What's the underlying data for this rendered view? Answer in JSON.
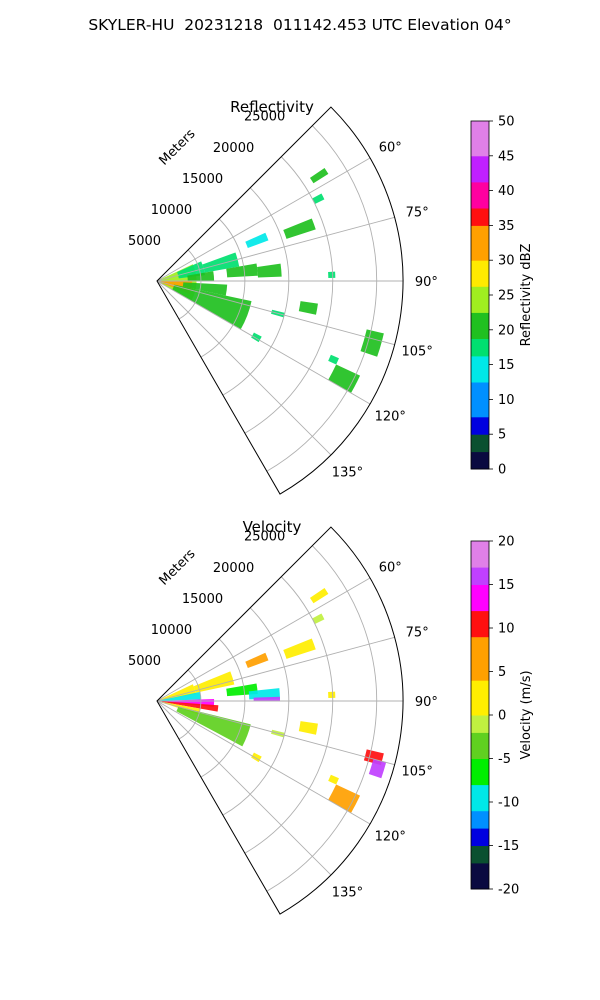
{
  "title": "SKYLER-HU  20231218  011142.453 UTC Elevation 04°",
  "chart_data": [
    {
      "type": "ppi-sector",
      "title": "Reflectivity",
      "radial_axis_label": "Meters",
      "radial_ticks": [
        5000,
        10000,
        15000,
        20000,
        25000
      ],
      "radial_tick_labels": [
        "5000",
        "10000",
        "15000",
        "20000",
        "25000"
      ],
      "range_max": 28000,
      "azimuth_range": [
        45,
        150
      ],
      "azimuth_ticks": [
        60,
        75,
        90,
        105,
        120,
        135
      ],
      "azimuth_tick_labels": [
        "60°",
        "75°",
        "90°",
        "105°",
        "120°",
        "135°"
      ],
      "grid": true,
      "colorbar": {
        "label": "Reflectivity dBZ",
        "min": 0,
        "max": 50,
        "ticks": [
          0,
          5,
          10,
          15,
          20,
          25,
          30,
          35,
          40,
          45,
          50
        ],
        "tick_labels": [
          "0",
          "5",
          "10",
          "15",
          "20",
          "25",
          "30",
          "35",
          "40",
          "45",
          "50"
        ],
        "color_stops": [
          {
            "v": 0,
            "c": "#0a0a40"
          },
          {
            "v": 3,
            "c": "#0a5030"
          },
          {
            "v": 5,
            "c": "#0000e0"
          },
          {
            "v": 8,
            "c": "#0090ff"
          },
          {
            "v": 12,
            "c": "#00e8e8"
          },
          {
            "v": 16,
            "c": "#00e070"
          },
          {
            "v": 19,
            "c": "#20c020"
          },
          {
            "v": 22,
            "c": "#a0ee20"
          },
          {
            "v": 26,
            "c": "#ffea00"
          },
          {
            "v": 30,
            "c": "#ffa000"
          },
          {
            "v": 35,
            "c": "#ff1010"
          },
          {
            "v": 38,
            "c": "#ff00a0"
          },
          {
            "v": 41,
            "c": "#c020ff"
          },
          {
            "v": 45,
            "c": "#e080e8"
          },
          {
            "v": 50,
            "c": "#f8e8f8"
          }
        ]
      },
      "echoes": [
        {
          "az": [
            65,
            120
          ],
          "r": [
            0,
            4500
          ],
          "value": 24
        },
        {
          "az": [
            90,
            112
          ],
          "r": [
            300,
            4000
          ],
          "value": 30
        },
        {
          "az": [
            66,
            83
          ],
          "r": [
            2500,
            5500
          ],
          "value": 18
        },
        {
          "az": [
            70,
            80
          ],
          "r": [
            5500,
            9500
          ],
          "value": 16
        },
        {
          "az": [
            80,
            90
          ],
          "r": [
            3500,
            6500
          ],
          "value": 20
        },
        {
          "az": [
            93,
            102
          ],
          "r": [
            3000,
            8000
          ],
          "value": 20
        },
        {
          "az": [
            102,
            120
          ],
          "r": [
            2000,
            11000
          ],
          "value": 21
        },
        {
          "az": [
            80,
            87
          ],
          "r": [
            8000,
            11500
          ],
          "value": 19
        },
        {
          "az": [
            82,
            88
          ],
          "r": [
            11500,
            14200
          ],
          "value": 20
        },
        {
          "az": [
            66,
            70
          ],
          "r": [
            11000,
            13500
          ],
          "value": 13
        },
        {
          "az": [
            68,
            72
          ],
          "r": [
            15500,
            19000
          ],
          "value": 20
        },
        {
          "az": [
            56,
            58
          ],
          "r": [
            21000,
            23000
          ],
          "value": 19
        },
        {
          "az": [
            62,
            64
          ],
          "r": [
            20000,
            21200
          ],
          "value": 18
        },
        {
          "az": [
            87,
            89
          ],
          "r": [
            19500,
            20300
          ],
          "value": 18
        },
        {
          "az": [
            98,
            102
          ],
          "r": [
            16500,
            18500
          ],
          "value": 19
        },
        {
          "az": [
            104,
            106
          ],
          "r": [
            13500,
            15000
          ],
          "value": 18
        },
        {
          "az": [
            103,
            109
          ],
          "r": [
            24500,
            26500
          ],
          "value": 20
        },
        {
          "az": [
            113,
            115
          ],
          "r": [
            21500,
            22500
          ],
          "value": 18
        },
        {
          "az": [
            115,
            120
          ],
          "r": [
            22500,
            25500
          ],
          "value": 19
        },
        {
          "az": [
            118,
            121
          ],
          "r": [
            12500,
            13500
          ],
          "value": 18
        }
      ]
    },
    {
      "type": "ppi-sector",
      "title": "Velocity",
      "radial_axis_label": "Meters",
      "radial_ticks": [
        5000,
        10000,
        15000,
        20000,
        25000
      ],
      "radial_tick_labels": [
        "5000",
        "10000",
        "15000",
        "20000",
        "25000"
      ],
      "range_max": 28000,
      "azimuth_range": [
        45,
        150
      ],
      "azimuth_ticks": [
        60,
        75,
        90,
        105,
        120,
        135
      ],
      "azimuth_tick_labels": [
        "60°",
        "75°",
        "90°",
        "105°",
        "120°",
        "135°"
      ],
      "grid": true,
      "colorbar": {
        "label": "Velocity (m/s)",
        "min": -20,
        "max": 20,
        "ticks": [
          -20,
          -15,
          -10,
          -5,
          0,
          5,
          10,
          15,
          20
        ],
        "tick_labels": [
          "-20",
          "-15",
          "-10",
          "-5",
          "0",
          "5",
          "10",
          "15",
          "20"
        ],
        "color_stops": [
          {
            "v": -20,
            "c": "#0a0a40"
          },
          {
            "v": -17,
            "c": "#0a5030"
          },
          {
            "v": -15,
            "c": "#0000e0"
          },
          {
            "v": -13,
            "c": "#0090ff"
          },
          {
            "v": -11,
            "c": "#00e8e8"
          },
          {
            "v": -8,
            "c": "#00ee00"
          },
          {
            "v": -5,
            "c": "#60d020"
          },
          {
            "v": -2,
            "c": "#c0f040"
          },
          {
            "v": 0,
            "c": "#ffee00"
          },
          {
            "v": 4,
            "c": "#ffa000"
          },
          {
            "v": 9,
            "c": "#ff1010"
          },
          {
            "v": 12,
            "c": "#ff00ff"
          },
          {
            "v": 15,
            "c": "#c040ff"
          },
          {
            "v": 17,
            "c": "#e080e8"
          },
          {
            "v": 20,
            "c": "#f8e8f8"
          }
        ]
      },
      "echoes": [
        {
          "az": [
            65,
            80
          ],
          "r": [
            0,
            4500
          ],
          "value": 1
        },
        {
          "az": [
            68,
            78
          ],
          "r": [
            4500,
            9000
          ],
          "value": 1
        },
        {
          "az": [
            78,
            88
          ],
          "r": [
            0,
            5000
          ],
          "value": -11
        },
        {
          "az": [
            88,
            96
          ],
          "r": [
            0,
            6500
          ],
          "value": 13
        },
        {
          "az": [
            94,
            100
          ],
          "r": [
            500,
            7000
          ],
          "value": 9
        },
        {
          "az": [
            100,
            108
          ],
          "r": [
            0,
            5000
          ],
          "value": 1
        },
        {
          "az": [
            104,
            118
          ],
          "r": [
            2500,
            11000
          ],
          "value": -5
        },
        {
          "az": [
            80,
            86
          ],
          "r": [
            8000,
            11500
          ],
          "value": -7
        },
        {
          "az": [
            84,
            89
          ],
          "r": [
            10500,
            14000
          ],
          "value": -11
        },
        {
          "az": [
            88,
            90
          ],
          "r": [
            11000,
            14000
          ],
          "value": 15
        },
        {
          "az": [
            66,
            70
          ],
          "r": [
            11000,
            13500
          ],
          "value": 5
        },
        {
          "az": [
            68,
            72
          ],
          "r": [
            15500,
            19000
          ],
          "value": 0
        },
        {
          "az": [
            56,
            58
          ],
          "r": [
            21000,
            23000
          ],
          "value": 0
        },
        {
          "az": [
            62,
            64
          ],
          "r": [
            20000,
            21200
          ],
          "value": -1
        },
        {
          "az": [
            87,
            89
          ],
          "r": [
            19500,
            20300
          ],
          "value": 2
        },
        {
          "az": [
            98,
            102
          ],
          "r": [
            16500,
            18500
          ],
          "value": 0
        },
        {
          "az": [
            104,
            106
          ],
          "r": [
            13500,
            15000
          ],
          "value": -2
        },
        {
          "az": [
            103,
            106
          ],
          "r": [
            24500,
            26500
          ],
          "value": 10
        },
        {
          "az": [
            105,
            109
          ],
          "r": [
            25500,
            27000
          ],
          "value": 15
        },
        {
          "az": [
            113,
            115
          ],
          "r": [
            21500,
            22500
          ],
          "value": 1
        },
        {
          "az": [
            115,
            120
          ],
          "r": [
            22500,
            25500
          ],
          "value": 5
        },
        {
          "az": [
            118,
            121
          ],
          "r": [
            12500,
            13500
          ],
          "value": 0
        }
      ]
    }
  ]
}
